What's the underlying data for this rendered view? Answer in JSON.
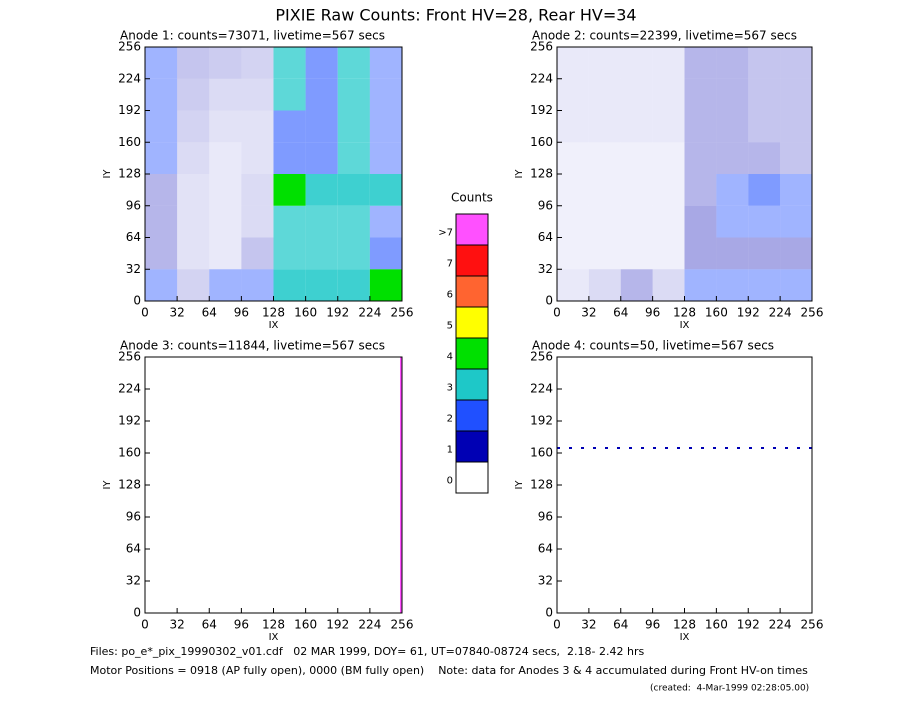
{
  "title": "PIXIE Raw Counts:  Front HV=28, Rear HV=34",
  "chart_data": [
    {
      "type": "heatmap",
      "title": "Anode 1: counts=73071, livetime=567 secs",
      "xlabel": "IX",
      "ylabel": "IY",
      "xlim": [
        0,
        256
      ],
      "ylim": [
        0,
        256
      ],
      "xticks": [
        0,
        32,
        64,
        96,
        128,
        160,
        192,
        224,
        256
      ],
      "yticks": [
        0,
        32,
        64,
        96,
        128,
        160,
        192,
        224,
        256
      ],
      "z": [
        [
          1.5,
          0.6,
          1.5,
          1.5,
          3,
          3,
          3,
          3.5
        ],
        [
          1,
          0.4,
          0.3,
          0.8,
          2.5,
          2.5,
          2.5,
          2
        ],
        [
          1,
          0.4,
          0.3,
          0.5,
          2.5,
          2.5,
          2.5,
          1.5
        ],
        [
          1,
          0.4,
          0.3,
          0.5,
          3.5,
          3,
          3,
          3
        ],
        [
          1.5,
          0.5,
          0.3,
          0.4,
          2,
          2,
          2.5,
          1.5
        ],
        [
          1.5,
          0.6,
          0.4,
          0.4,
          2,
          2,
          2.5,
          1.5
        ],
        [
          1.5,
          0.7,
          0.5,
          0.5,
          2.5,
          2,
          2.5,
          1.5
        ],
        [
          1.5,
          0.8,
          0.7,
          0.6,
          2.5,
          2,
          2.5,
          1.5
        ]
      ]
    },
    {
      "type": "heatmap",
      "title": "Anode 2: counts=22399, livetime=567 secs",
      "xlabel": "IX",
      "ylabel": "IY",
      "xlim": [
        0,
        256
      ],
      "ylim": [
        0,
        256
      ],
      "xticks": [
        0,
        32,
        64,
        96,
        128,
        160,
        192,
        224,
        256
      ],
      "yticks": [
        0,
        32,
        64,
        96,
        128,
        160,
        192,
        224,
        256
      ],
      "z": [
        [
          0.3,
          0.5,
          1,
          0.5,
          1.5,
          1.5,
          1.5,
          1.5
        ],
        [
          0.2,
          0.2,
          0.2,
          0.2,
          1.2,
          1.2,
          1.2,
          1.2
        ],
        [
          0.2,
          0.2,
          0.2,
          0.2,
          1.2,
          1.5,
          1.5,
          1.5
        ],
        [
          0.2,
          0.2,
          0.2,
          0.2,
          1,
          1.5,
          2,
          1.5
        ],
        [
          0.2,
          0.2,
          0.2,
          0.2,
          1,
          1,
          1,
          0.8
        ],
        [
          0.3,
          0.3,
          0.3,
          0.3,
          1,
          1,
          0.8,
          0.8
        ],
        [
          0.3,
          0.3,
          0.3,
          0.3,
          1,
          1,
          0.8,
          0.8
        ],
        [
          0.3,
          0.3,
          0.3,
          0.3,
          1,
          1,
          0.8,
          0.8
        ]
      ]
    },
    {
      "type": "heatmap",
      "title": "Anode 3: counts=11844, livetime=567 secs",
      "xlabel": "IX",
      "ylabel": "IY",
      "xlim": [
        0,
        256
      ],
      "ylim": [
        0,
        256
      ],
      "xticks": [
        0,
        32,
        64,
        96,
        128,
        160,
        192,
        224,
        256
      ],
      "yticks": [
        0,
        32,
        64,
        96,
        128,
        160,
        192,
        224,
        256
      ],
      "z": [
        [
          0,
          0,
          0,
          0,
          0,
          0,
          0,
          0
        ],
        [
          0,
          0,
          0,
          0,
          0,
          0,
          0,
          0
        ],
        [
          0,
          0,
          0,
          0,
          0,
          0,
          0,
          0
        ],
        [
          0,
          0,
          0,
          0,
          0,
          0,
          0,
          0
        ],
        [
          0,
          0,
          0,
          0,
          0,
          0,
          0,
          0
        ],
        [
          0,
          0,
          0,
          0,
          0,
          0,
          0,
          0
        ],
        [
          0,
          0,
          0,
          0,
          0,
          0,
          0,
          0
        ],
        [
          0,
          0,
          0,
          0,
          0,
          0,
          0,
          0
        ]
      ],
      "lines": [
        {
          "x": [
            255,
            255
          ],
          "y": [
            0,
            256
          ],
          "value": 8
        }
      ]
    },
    {
      "type": "heatmap",
      "title": "Anode 4: counts=50, livetime=567 secs",
      "xlabel": "IX",
      "ylabel": "IY",
      "xlim": [
        0,
        256
      ],
      "ylim": [
        0,
        256
      ],
      "xticks": [
        0,
        32,
        64,
        96,
        128,
        160,
        192,
        224,
        256
      ],
      "yticks": [
        0,
        32,
        64,
        96,
        128,
        160,
        192,
        224,
        256
      ],
      "z": [
        [
          0,
          0,
          0,
          0,
          0,
          0,
          0,
          0
        ],
        [
          0,
          0,
          0,
          0,
          0,
          0,
          0,
          0
        ],
        [
          0,
          0,
          0,
          0,
          0,
          0,
          0,
          0
        ],
        [
          0,
          0,
          0,
          0,
          0,
          0,
          0,
          0
        ],
        [
          0,
          0,
          0,
          0,
          0,
          0,
          0,
          0
        ],
        [
          0,
          0,
          0,
          0,
          0,
          0,
          0,
          0
        ],
        [
          0,
          0,
          0,
          0,
          0,
          0,
          0,
          0
        ],
        [
          0,
          0,
          0,
          0,
          0,
          0,
          0,
          0
        ]
      ],
      "lines": [
        {
          "x": [
            0,
            256
          ],
          "y": [
            165,
            165
          ],
          "value": 1
        }
      ]
    }
  ],
  "colorbar": {
    "title": "Counts",
    "labels": [
      0,
      1,
      2,
      3,
      4,
      5,
      6,
      7,
      ">7"
    ],
    "colors": [
      "#ffffff",
      "#0000b4",
      "#2050ff",
      "#1ec8c8",
      "#00e000",
      "#ffff00",
      "#ff6430",
      "#ff1010",
      "#ff50ff"
    ]
  },
  "footer": [
    "Files: po_e*_pix_19990302_v01.cdf   02 MAR 1999, DOY= 61, UT=07840-08724 secs,  2.18- 2.42 hrs",
    "Motor Positions = 0918 (AP fully open), 0000 (BM fully open)    Note: data for Anodes 3 & 4 accumulated during Front HV-on times",
    "(created:  4-Mar-1999 02:28:05.00)"
  ]
}
